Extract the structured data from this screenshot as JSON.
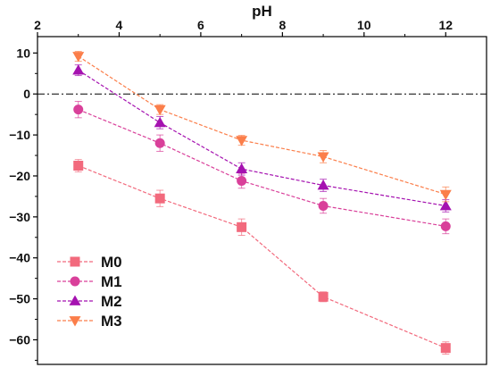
{
  "chart_data": {
    "type": "line",
    "xlabel": "pH",
    "ylabel": "",
    "xlim": [
      2,
      13
    ],
    "ylim": [
      -66,
      14
    ],
    "xticks": [
      2,
      4,
      6,
      8,
      10,
      12
    ],
    "yticks": [
      10,
      0,
      -10,
      -20,
      -30,
      -40,
      -50,
      -60
    ],
    "x_axis_position": "top",
    "reference_line": {
      "y": 0,
      "style": "dash-dot",
      "color": "#000000"
    },
    "grid": false,
    "legend_position": "bottom-left",
    "x": [
      3,
      5,
      7,
      9,
      12
    ],
    "series": [
      {
        "name": "M0",
        "marker": "square",
        "color": "#f26a7d",
        "values": [
          -17.5,
          -25.5,
          -32.5,
          -49.5,
          -62.0
        ],
        "errors": [
          1.5,
          2.0,
          2.0,
          1.2,
          1.5
        ]
      },
      {
        "name": "M1",
        "marker": "circle",
        "color": "#d9409a",
        "values": [
          -3.8,
          -12.0,
          -21.2,
          -27.3,
          -32.3
        ],
        "errors": [
          2.0,
          2.0,
          1.8,
          1.8,
          1.8
        ]
      },
      {
        "name": "M2",
        "marker": "triangle-up",
        "color": "#a512b0",
        "values": [
          5.8,
          -7.0,
          -18.3,
          -22.3,
          -27.3
        ],
        "errors": [
          1.3,
          1.5,
          1.5,
          1.5,
          1.5
        ]
      },
      {
        "name": "M3",
        "marker": "triangle-down",
        "color": "#fb7e4a",
        "values": [
          9.2,
          -3.8,
          -11.3,
          -15.3,
          -24.5
        ],
        "errors": [
          1.2,
          1.2,
          1.2,
          1.5,
          1.8
        ]
      }
    ]
  }
}
